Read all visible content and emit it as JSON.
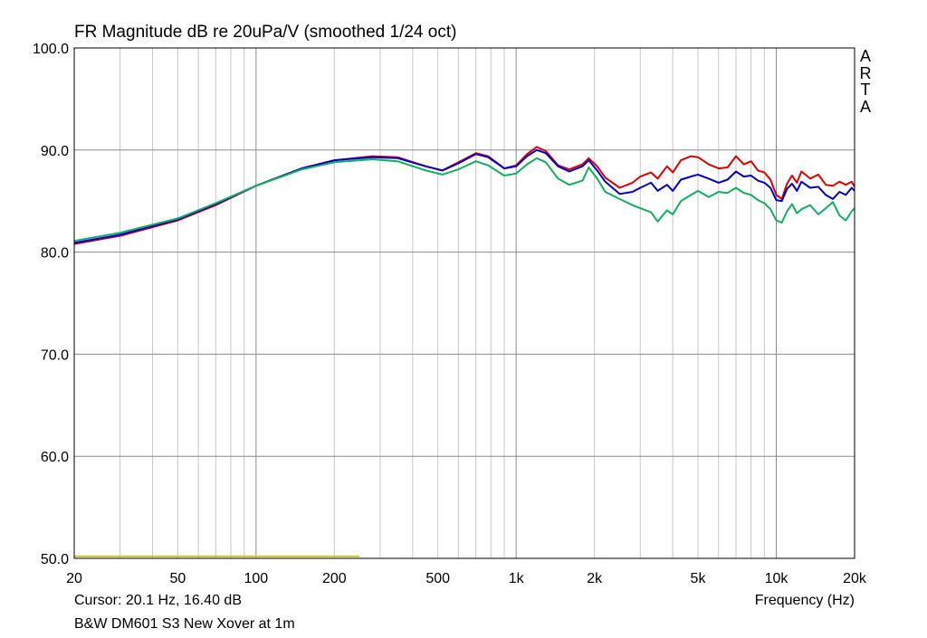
{
  "chart_data": {
    "type": "line",
    "title": "FR Magnitude dB re 20uPa/V (smoothed 1/24 oct)",
    "watermark": [
      "A",
      "R",
      "T",
      "A"
    ],
    "xlabel": "Frequency (Hz)",
    "ylabel": "",
    "x_scale": "log",
    "xlim": [
      20,
      20000
    ],
    "ylim": [
      50,
      100
    ],
    "x_ticks": [
      {
        "value": 20,
        "label": "20"
      },
      {
        "value": 50,
        "label": "50"
      },
      {
        "value": 100,
        "label": "100"
      },
      {
        "value": 200,
        "label": "200"
      },
      {
        "value": 500,
        "label": "500"
      },
      {
        "value": 1000,
        "label": "1k"
      },
      {
        "value": 2000,
        "label": "2k"
      },
      {
        "value": 5000,
        "label": "5k"
      },
      {
        "value": 10000,
        "label": "10k"
      },
      {
        "value": 20000,
        "label": "20k"
      }
    ],
    "y_ticks": [
      {
        "value": 100,
        "label": "100.0"
      },
      {
        "value": 90,
        "label": "90.0"
      },
      {
        "value": 80,
        "label": "80.0"
      },
      {
        "value": 70,
        "label": "70.0"
      },
      {
        "value": 60,
        "label": "60.0"
      },
      {
        "value": 50,
        "label": "50.0"
      }
    ],
    "grid": true,
    "series": [
      {
        "color": "#e00000",
        "points": [
          [
            20,
            80.8
          ],
          [
            30,
            81.6
          ],
          [
            50,
            83.1
          ],
          [
            70,
            84.6
          ],
          [
            100,
            86.5
          ],
          [
            150,
            88.2
          ],
          [
            200,
            89.0
          ],
          [
            280,
            89.4
          ],
          [
            350,
            89.3
          ],
          [
            450,
            88.4
          ],
          [
            520,
            88.0
          ],
          [
            600,
            88.8
          ],
          [
            700,
            89.7
          ],
          [
            780,
            89.4
          ],
          [
            900,
            88.2
          ],
          [
            1000,
            88.5
          ],
          [
            1100,
            89.6
          ],
          [
            1200,
            90.3
          ],
          [
            1300,
            89.9
          ],
          [
            1450,
            88.5
          ],
          [
            1600,
            88.1
          ],
          [
            1800,
            88.6
          ],
          [
            1900,
            89.2
          ],
          [
            2050,
            88.4
          ],
          [
            2200,
            87.3
          ],
          [
            2500,
            86.3
          ],
          [
            2800,
            86.8
          ],
          [
            3000,
            87.4
          ],
          [
            3300,
            87.8
          ],
          [
            3500,
            87.2
          ],
          [
            3800,
            88.4
          ],
          [
            4000,
            87.8
          ],
          [
            4300,
            89.0
          ],
          [
            4700,
            89.4
          ],
          [
            5000,
            89.3
          ],
          [
            5500,
            88.6
          ],
          [
            6000,
            88.2
          ],
          [
            6500,
            88.3
          ],
          [
            7000,
            89.4
          ],
          [
            7500,
            88.6
          ],
          [
            8000,
            88.9
          ],
          [
            8500,
            88.0
          ],
          [
            9000,
            87.8
          ],
          [
            9500,
            87.1
          ],
          [
            10000,
            85.6
          ],
          [
            10500,
            85.2
          ],
          [
            11000,
            86.7
          ],
          [
            11500,
            87.5
          ],
          [
            12000,
            86.8
          ],
          [
            12500,
            87.9
          ],
          [
            13500,
            87.2
          ],
          [
            14500,
            87.6
          ],
          [
            15500,
            86.6
          ],
          [
            16500,
            86.5
          ],
          [
            17500,
            86.9
          ],
          [
            18500,
            86.6
          ],
          [
            19500,
            86.9
          ],
          [
            20000,
            86.4
          ]
        ]
      },
      {
        "color": "#0000d0",
        "points": [
          [
            20,
            80.9
          ],
          [
            30,
            81.7
          ],
          [
            50,
            83.2
          ],
          [
            70,
            84.7
          ],
          [
            100,
            86.5
          ],
          [
            150,
            88.2
          ],
          [
            200,
            89.0
          ],
          [
            280,
            89.3
          ],
          [
            350,
            89.2
          ],
          [
            450,
            88.4
          ],
          [
            520,
            88.0
          ],
          [
            600,
            88.7
          ],
          [
            700,
            89.6
          ],
          [
            780,
            89.3
          ],
          [
            900,
            88.2
          ],
          [
            1000,
            88.4
          ],
          [
            1100,
            89.4
          ],
          [
            1200,
            90.0
          ],
          [
            1300,
            89.7
          ],
          [
            1450,
            88.4
          ],
          [
            1600,
            87.9
          ],
          [
            1800,
            88.4
          ],
          [
            1900,
            89.0
          ],
          [
            2050,
            88.0
          ],
          [
            2200,
            86.9
          ],
          [
            2500,
            85.7
          ],
          [
            2800,
            85.9
          ],
          [
            3000,
            86.3
          ],
          [
            3300,
            86.8
          ],
          [
            3500,
            86.0
          ],
          [
            3800,
            86.6
          ],
          [
            4000,
            86.0
          ],
          [
            4300,
            87.1
          ],
          [
            4700,
            87.4
          ],
          [
            5000,
            87.6
          ],
          [
            5500,
            87.2
          ],
          [
            6000,
            86.8
          ],
          [
            6500,
            87.1
          ],
          [
            7000,
            87.9
          ],
          [
            7500,
            87.4
          ],
          [
            8000,
            87.5
          ],
          [
            8500,
            87.0
          ],
          [
            9000,
            86.8
          ],
          [
            9500,
            86.3
          ],
          [
            10000,
            85.1
          ],
          [
            10500,
            85.0
          ],
          [
            11000,
            86.2
          ],
          [
            11500,
            86.7
          ],
          [
            12000,
            86.0
          ],
          [
            12500,
            86.9
          ],
          [
            13500,
            86.3
          ],
          [
            14500,
            86.4
          ],
          [
            15500,
            85.6
          ],
          [
            16500,
            85.2
          ],
          [
            17500,
            85.9
          ],
          [
            18500,
            85.6
          ],
          [
            19500,
            86.3
          ],
          [
            20000,
            86.0
          ]
        ]
      },
      {
        "color": "#10b060",
        "points": [
          [
            20,
            81.1
          ],
          [
            30,
            81.9
          ],
          [
            50,
            83.3
          ],
          [
            70,
            84.8
          ],
          [
            100,
            86.5
          ],
          [
            150,
            88.1
          ],
          [
            200,
            88.8
          ],
          [
            280,
            89.1
          ],
          [
            350,
            88.9
          ],
          [
            450,
            88.0
          ],
          [
            520,
            87.6
          ],
          [
            600,
            88.1
          ],
          [
            700,
            88.9
          ],
          [
            780,
            88.5
          ],
          [
            900,
            87.5
          ],
          [
            1000,
            87.7
          ],
          [
            1100,
            88.6
          ],
          [
            1200,
            89.2
          ],
          [
            1300,
            88.8
          ],
          [
            1450,
            87.2
          ],
          [
            1600,
            86.6
          ],
          [
            1800,
            87.0
          ],
          [
            1900,
            88.3
          ],
          [
            2050,
            87.2
          ],
          [
            2200,
            85.9
          ],
          [
            2500,
            85.2
          ],
          [
            2800,
            84.6
          ],
          [
            3000,
            84.3
          ],
          [
            3300,
            83.9
          ],
          [
            3500,
            83.0
          ],
          [
            3800,
            84.1
          ],
          [
            4000,
            83.7
          ],
          [
            4300,
            85.0
          ],
          [
            4700,
            85.6
          ],
          [
            5000,
            86.0
          ],
          [
            5500,
            85.4
          ],
          [
            6000,
            85.9
          ],
          [
            6500,
            85.8
          ],
          [
            7000,
            86.3
          ],
          [
            7500,
            85.8
          ],
          [
            8000,
            85.6
          ],
          [
            8500,
            85.1
          ],
          [
            9000,
            84.8
          ],
          [
            9500,
            84.2
          ],
          [
            10000,
            83.1
          ],
          [
            10500,
            82.9
          ],
          [
            11000,
            84.0
          ],
          [
            11500,
            84.7
          ],
          [
            12000,
            83.8
          ],
          [
            12500,
            84.2
          ],
          [
            13500,
            84.6
          ],
          [
            14500,
            83.7
          ],
          [
            15500,
            84.3
          ],
          [
            16500,
            84.9
          ],
          [
            17500,
            83.6
          ],
          [
            18500,
            83.1
          ],
          [
            19500,
            84.0
          ],
          [
            20000,
            84.3
          ]
        ]
      },
      {
        "color": "#c8c820",
        "points": [
          [
            20,
            50.2
          ],
          [
            250,
            50.2
          ]
        ]
      }
    ]
  },
  "cursor_text": "Cursor: 20.1 Hz, 16.40 dB",
  "caption": "B&W DM601 S3 New Xover at 1m"
}
